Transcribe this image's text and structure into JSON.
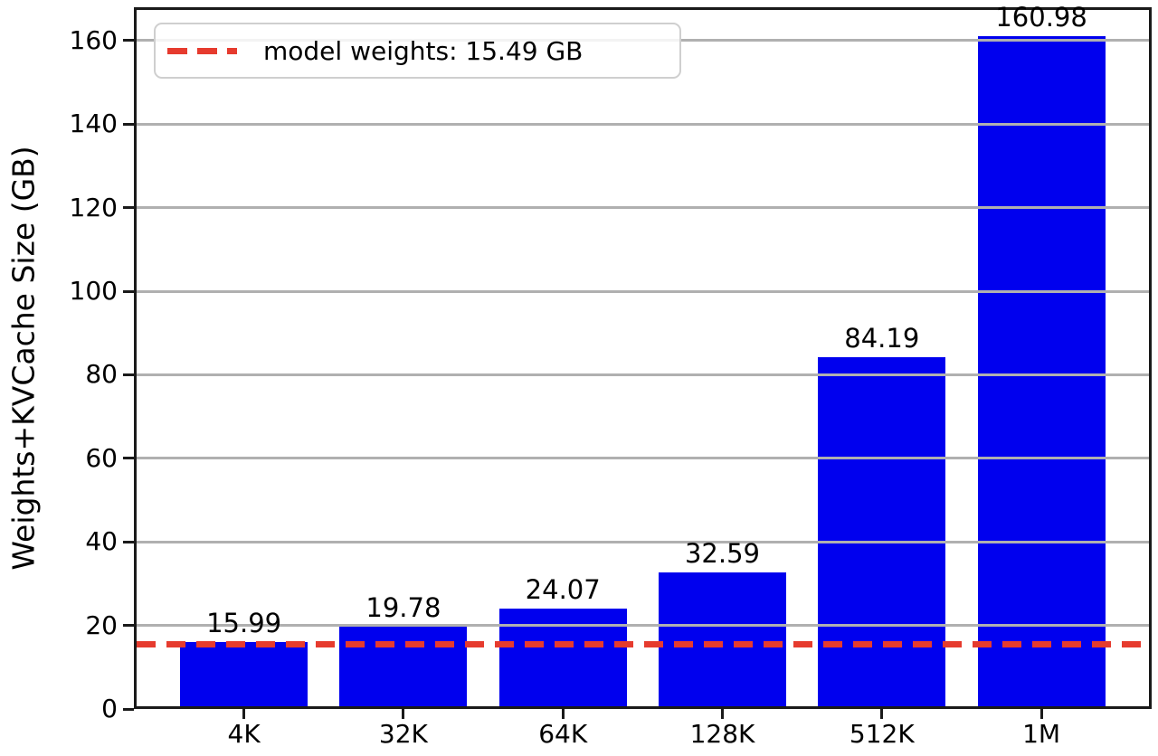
{
  "chart_data": {
    "type": "bar",
    "title": "",
    "xlabel": "",
    "ylabel": "Weights+KVCache Size (GB)",
    "categories": [
      "4K",
      "32K",
      "64K",
      "128K",
      "512K",
      "1M"
    ],
    "values": [
      15.99,
      19.78,
      24.07,
      32.59,
      84.19,
      160.98
    ],
    "bar_value_labels": [
      "15.99",
      "19.78",
      "24.07",
      "32.59",
      "84.19",
      "160.98"
    ],
    "yticks": [
      0,
      20,
      40,
      60,
      80,
      100,
      120,
      140,
      160
    ],
    "ylim": [
      0,
      169
    ],
    "grid": "horizontal gridlines drawn over bars",
    "legend_position": "upper left",
    "bar_color": "#0000ee",
    "grid_color": "#b0b0b0",
    "refline": {
      "value": 15.49,
      "label": "model weights: 15.49 GB",
      "color": "#e63b2e",
      "style": "dashed"
    }
  }
}
